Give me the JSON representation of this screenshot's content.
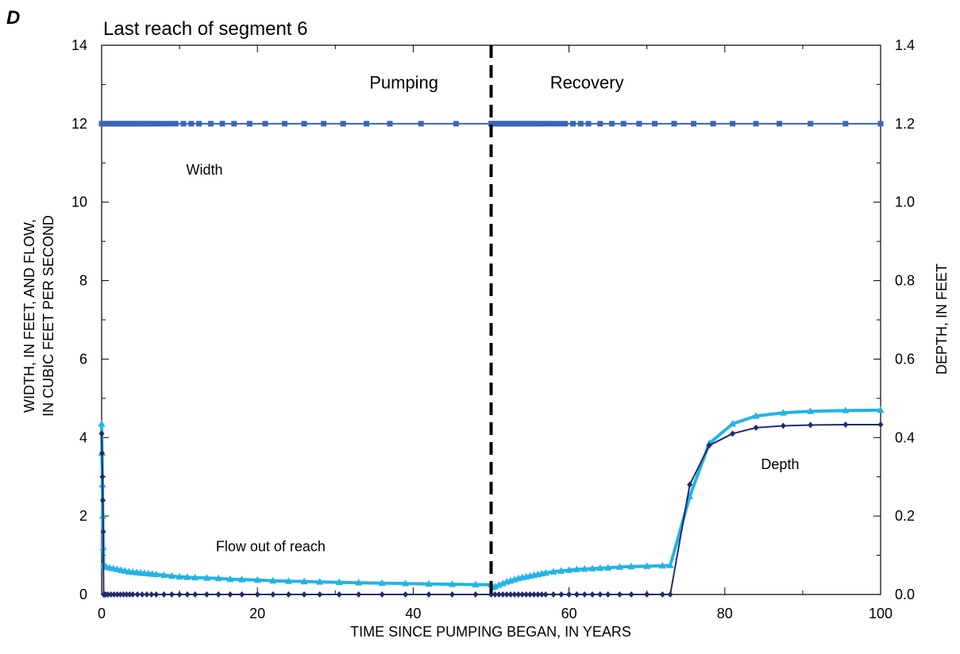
{
  "chart_data": {
    "type": "line",
    "panel_letter": "D",
    "title": "Last reach of segment 6",
    "xlabel": "TIME SINCE PUMPING BEGAN, IN YEARS",
    "ylabel_left": [
      "WIDTH, IN FEET, AND FLOW,",
      "IN CUBIC FEET PER SECOND"
    ],
    "ylabel_right": "DEPTH, IN FEET",
    "xlim": [
      0,
      100
    ],
    "ylim_left": [
      0,
      14
    ],
    "ylim_right": [
      0,
      1.4
    ],
    "x_ticks": [
      0,
      20,
      40,
      60,
      80,
      100
    ],
    "x_tick_labels": [
      "0",
      "20",
      "40",
      "60",
      "80",
      "100"
    ],
    "y_left_ticks": [
      0,
      2,
      4,
      6,
      8,
      10,
      12,
      14
    ],
    "y_left_tick_labels": [
      "0",
      "2",
      "4",
      "6",
      "8",
      "10",
      "12",
      "14"
    ],
    "y_right_ticks": [
      0,
      0.2,
      0.4,
      0.6,
      0.8,
      1.0,
      1.2,
      1.4
    ],
    "y_right_tick_labels": [
      "0.0",
      "0.2",
      "0.4",
      "0.6",
      "0.8",
      "1.0",
      "1.2",
      "1.4"
    ],
    "vline": {
      "x": 50,
      "style": "dashed",
      "color": "#000000"
    },
    "annotations": [
      {
        "text": "Pumping",
        "x": 38.8,
        "y": 12.9
      },
      {
        "text": "Recovery",
        "x": 62.3,
        "y": 12.9
      },
      {
        "text": "Width",
        "x": 13.2,
        "y": 10.7
      },
      {
        "text": "Flow out of reach",
        "x": 21.7,
        "y": 1.1
      },
      {
        "text": "Depth",
        "x": 87.1,
        "y": 3.2
      }
    ],
    "series": [
      {
        "role": "width",
        "color": "#3a66b8",
        "marker": "square",
        "axis": "left",
        "x": [
          0,
          0.3,
          0.6,
          0.9,
          1.2,
          1.5,
          1.8,
          2.1,
          2.4,
          2.7,
          3.0,
          3.3,
          3.6,
          3.9,
          4.2,
          4.6,
          5.0,
          5.4,
          5.8,
          6.2,
          6.7,
          7.2,
          7.7,
          8.3,
          8.9,
          9.5,
          10.5,
          11.5,
          12.5,
          14,
          15.5,
          17,
          19,
          21,
          23.5,
          26,
          28.5,
          31,
          34,
          37,
          41,
          45.5,
          50,
          50.3,
          50.6,
          50.9,
          51.2,
          51.5,
          51.8,
          52.1,
          52.4,
          52.7,
          53.0,
          53.3,
          53.6,
          53.9,
          54.2,
          54.6,
          55.0,
          55.4,
          55.8,
          56.2,
          56.7,
          57.2,
          57.7,
          58.3,
          58.9,
          59.5,
          60.5,
          61.5,
          62.5,
          64,
          65.5,
          67,
          69,
          71,
          73.5,
          76,
          78.5,
          81,
          84,
          87,
          91,
          95.5,
          100
        ],
        "values": [
          12,
          12,
          12,
          12,
          12,
          12,
          12,
          12,
          12,
          12,
          12,
          12,
          12,
          12,
          12,
          12,
          12,
          12,
          12,
          12,
          12,
          12,
          12,
          12,
          12,
          12,
          12,
          12,
          12,
          12,
          12,
          12,
          12,
          12,
          12,
          12,
          12,
          12,
          12,
          12,
          12,
          12,
          12,
          12,
          12,
          12,
          12,
          12,
          12,
          12,
          12,
          12,
          12,
          12,
          12,
          12,
          12,
          12,
          12,
          12,
          12,
          12,
          12,
          12,
          12,
          12,
          12,
          12,
          12,
          12,
          12,
          12,
          12,
          12,
          12,
          12,
          12,
          12,
          12,
          12,
          12,
          12,
          12,
          12,
          12
        ]
      },
      {
        "role": "flow",
        "color": "#22b4e4",
        "marker": "triangle",
        "axis": "left",
        "x": [
          0,
          0.05,
          0.1,
          0.15,
          0.2,
          0.25,
          0.3,
          0.4,
          0.6,
          1,
          1.5,
          2,
          2.5,
          3,
          3.5,
          4,
          4.5,
          5,
          5.5,
          6,
          6.5,
          7,
          8,
          9,
          10,
          11,
          12,
          13.5,
          15,
          16.5,
          18,
          20,
          22,
          24,
          26,
          28,
          30.5,
          33,
          36,
          39,
          42,
          45,
          48,
          50,
          50.2,
          50.5,
          51,
          51.5,
          52,
          52.5,
          53,
          53.5,
          54,
          54.5,
          55,
          55.5,
          56,
          56.5,
          57,
          58,
          59,
          60,
          61,
          62,
          63,
          64,
          65,
          66.5,
          68,
          70,
          72,
          73,
          75.5,
          78,
          81,
          84,
          87.5,
          91,
          95.5,
          100
        ],
        "values": [
          4.35,
          3.6,
          2.8,
          2.0,
          1.2,
          0.78,
          0.74,
          0.72,
          0.7,
          0.68,
          0.66,
          0.64,
          0.62,
          0.6,
          0.58,
          0.57,
          0.56,
          0.55,
          0.54,
          0.53,
          0.52,
          0.51,
          0.49,
          0.47,
          0.45,
          0.44,
          0.43,
          0.42,
          0.41,
          0.39,
          0.38,
          0.37,
          0.35,
          0.34,
          0.33,
          0.32,
          0.31,
          0.3,
          0.29,
          0.28,
          0.27,
          0.26,
          0.25,
          0.25,
          0.18,
          0.2,
          0.24,
          0.28,
          0.32,
          0.35,
          0.38,
          0.41,
          0.43,
          0.45,
          0.47,
          0.49,
          0.51,
          0.53,
          0.55,
          0.58,
          0.6,
          0.62,
          0.64,
          0.65,
          0.66,
          0.67,
          0.68,
          0.7,
          0.71,
          0.72,
          0.73,
          0.74,
          2.5,
          3.85,
          4.35,
          4.55,
          4.63,
          4.67,
          4.69,
          4.7
        ]
      },
      {
        "role": "depth",
        "color": "#232a6e",
        "marker": "diamond",
        "axis": "right",
        "x": [
          0,
          0.05,
          0.1,
          0.15,
          0.2,
          0.25,
          0.35,
          0.5,
          0.8,
          1.2,
          1.6,
          2,
          2.4,
          2.8,
          3.2,
          3.6,
          4,
          4.6,
          5.2,
          5.8,
          6.4,
          7,
          8,
          9,
          10,
          11,
          12,
          13.5,
          15,
          16.5,
          18,
          20,
          22,
          24,
          26,
          28,
          30.5,
          33,
          36,
          39,
          42,
          45,
          48,
          50,
          50.5,
          51,
          51.5,
          52,
          52.5,
          53,
          53.5,
          54,
          54.5,
          55,
          55.5,
          56,
          56.5,
          57,
          58,
          59,
          60,
          61,
          62,
          63,
          64,
          65,
          66.5,
          68,
          70,
          72,
          73,
          75.5,
          78,
          81,
          84,
          87.5,
          91,
          95.5,
          100
        ],
        "values": [
          0.41,
          0.36,
          0.3,
          0.24,
          0.16,
          0.0,
          0.0,
          0.0,
          0.0,
          0.0,
          0.0,
          0.0,
          0.0,
          0.0,
          0.0,
          0.0,
          0.0,
          0.0,
          0.0,
          0.0,
          0.0,
          0.0,
          0.0,
          0.0,
          0.0,
          0.0,
          0.0,
          0.0,
          0.0,
          0.0,
          0.0,
          0.0,
          0.0,
          0.0,
          0.0,
          0.0,
          0.0,
          0.0,
          0.0,
          0.0,
          0.0,
          0.0,
          0.0,
          0.0,
          0.0,
          0.0,
          0.0,
          0.0,
          0.0,
          0.0,
          0.0,
          0.0,
          0.0,
          0.0,
          0.0,
          0.0,
          0.0,
          0.0,
          0.0,
          0.0,
          0.0,
          0.0,
          0.0,
          0.0,
          0.0,
          0.0,
          0.0,
          0.0,
          0.0,
          0.0,
          0.0,
          0.28,
          0.38,
          0.41,
          0.425,
          0.43,
          0.432,
          0.433,
          0.433
        ]
      }
    ]
  }
}
